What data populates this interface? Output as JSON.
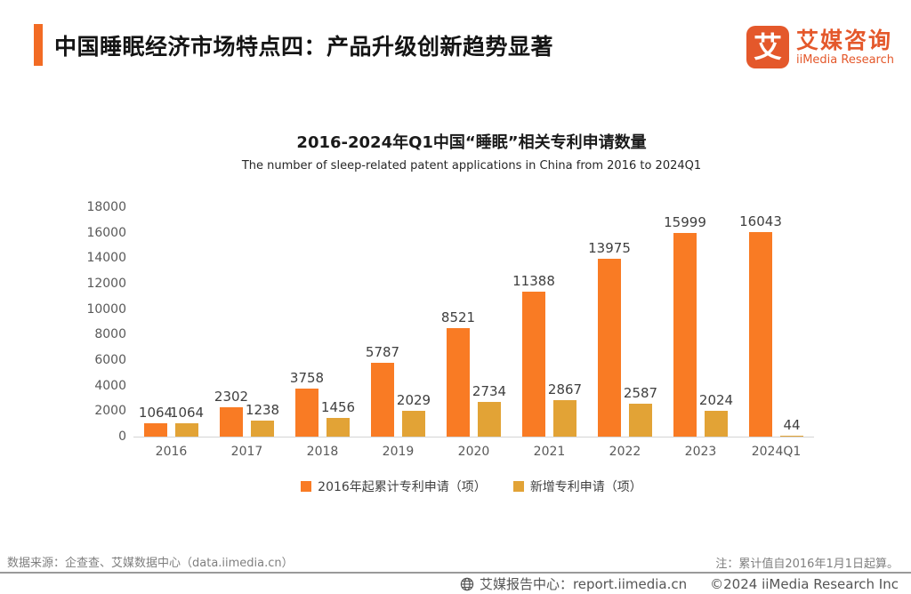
{
  "header": {
    "title": "中国睡眠经济市场特点四：产品升级创新趋势显著",
    "logo": {
      "icon_char": "艾",
      "brand_cn": "艾媒咨询",
      "brand_en": "iiMedia Research"
    }
  },
  "chart_data": {
    "type": "bar",
    "title": "2016-2024年Q1中国“睡眠”相关专利申请数量",
    "subtitle": "The number of sleep-related patent applications in China from 2016 to 2024Q1",
    "categories": [
      "2016",
      "2017",
      "2018",
      "2019",
      "2020",
      "2021",
      "2022",
      "2023",
      "2024Q1"
    ],
    "series": [
      {
        "name": "2016年起累计专利申请（项）",
        "color": "#f97b24",
        "values": [
          1064,
          2302,
          3758,
          5787,
          8521,
          11388,
          13975,
          15999,
          16043
        ]
      },
      {
        "name": "新增专利申请（项）",
        "color": "#e2a336",
        "values": [
          1064,
          1238,
          1456,
          2029,
          2734,
          2867,
          2587,
          2024,
          44
        ]
      }
    ],
    "xlabel": "",
    "ylabel": "",
    "ylim": [
      0,
      18000
    ],
    "ytick_step": 2000,
    "grid": false,
    "legend_position": "bottom"
  },
  "footer": {
    "source": "数据来源：企查查、艾媒数据中心（data.iimedia.cn）",
    "note": "注：累计值自2016年1月1日起算。",
    "bottom_bar": {
      "report_center": "艾媒报告中心：report.iimedia.cn",
      "copyright": "©2024  iiMedia Research Inc"
    }
  },
  "colors": {
    "accent": "#f26b24",
    "logo": "#e4582b",
    "series_cumulative": "#f97b24",
    "series_new": "#e2a336"
  }
}
